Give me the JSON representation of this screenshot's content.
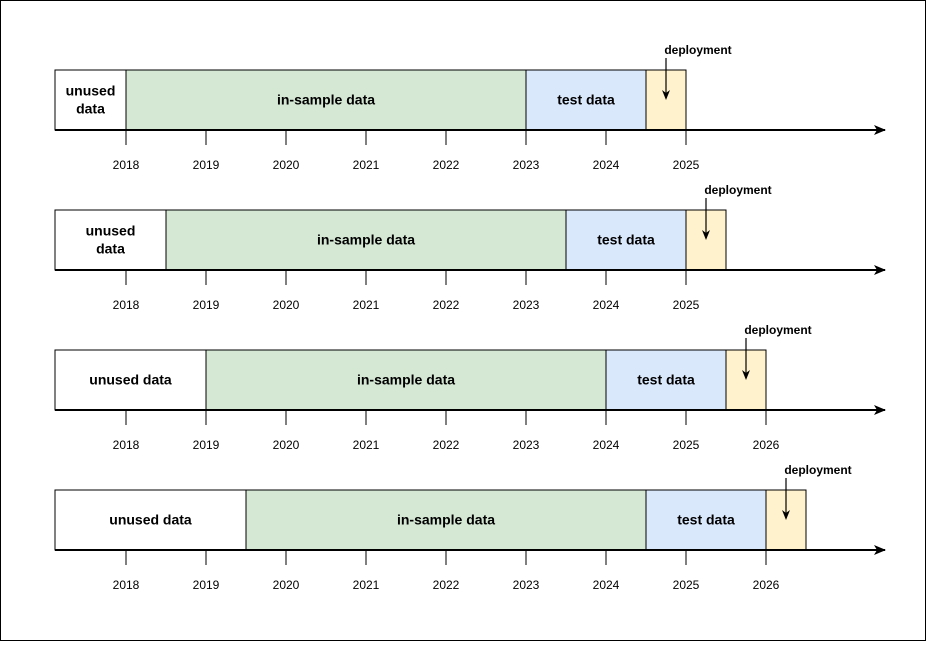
{
  "labels": {
    "unused_two_line": [
      "unused",
      "data"
    ],
    "unused_one_line": "unused data",
    "in_sample": "in-sample data",
    "test": "test data",
    "deployment": "deployment"
  },
  "colors": {
    "unused": "#ffffff",
    "in_sample": "#d5e8d4",
    "test": "#dae8fc",
    "deployment": "#fff2cc",
    "stroke": "#000000"
  },
  "rows": [
    {
      "unused_layout": "two-line",
      "ticks": [
        "2018",
        "2019",
        "2020",
        "2021",
        "2022",
        "2023",
        "2024",
        "2025"
      ]
    },
    {
      "unused_layout": "two-line",
      "ticks": [
        "2018",
        "2019",
        "2020",
        "2021",
        "2022",
        "2023",
        "2024",
        "2025"
      ]
    },
    {
      "unused_layout": "one-line",
      "ticks": [
        "2018",
        "2019",
        "2020",
        "2021",
        "2022",
        "2023",
        "2024",
        "2025",
        "2026"
      ]
    },
    {
      "unused_layout": "one-line",
      "ticks": [
        "2018",
        "2019",
        "2020",
        "2021",
        "2022",
        "2023",
        "2024",
        "2025",
        "2026"
      ]
    }
  ]
}
